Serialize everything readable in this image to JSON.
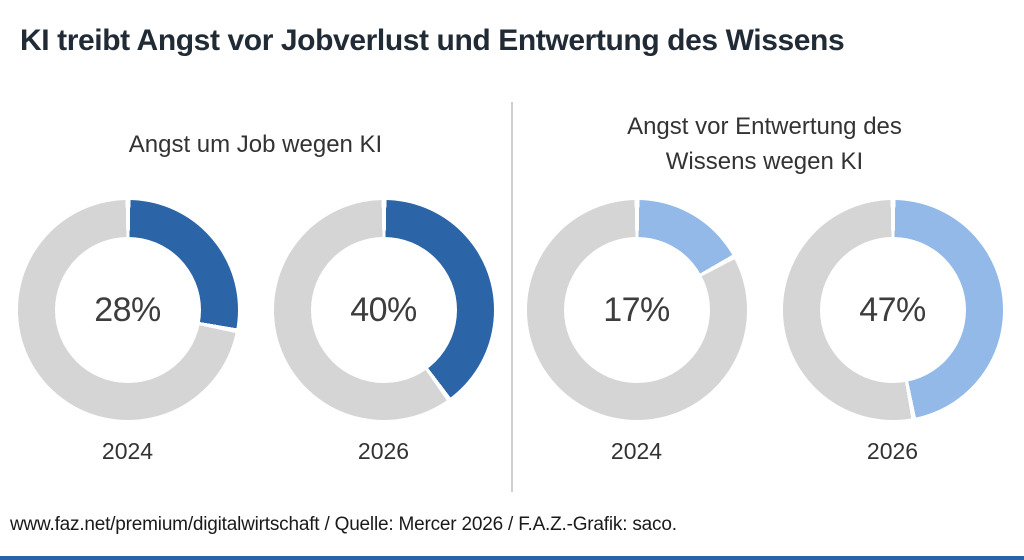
{
  "title": "KI treibt Angst vor Jobverlust und Entwertung des Wissens",
  "footer": "www.faz.net/premium/digitalwirtschaft / Quelle: Mercer 2026 / F.A.Z.-Grafik: saco.",
  "colors": {
    "title_text": "#212b36",
    "dark_blue": "#2b64a7",
    "light_blue": "#92b9e8",
    "ring_gray": "#d5d5d5",
    "divider_gray": "#cfcfcf",
    "bottom_bar_blue": "#2a63a6"
  },
  "chart_data": [
    {
      "type": "pie",
      "subtype": "donut",
      "title": "Angst um Job wegen KI",
      "title_lines": [
        "Angst um Job wegen KI"
      ],
      "unit": "%",
      "segment_color": "#2b64a7",
      "remainder_color": "#d5d5d5",
      "start_angle_deg": 0,
      "direction": "clockwise",
      "series": [
        {
          "category": "2024",
          "value": 28,
          "display": "28%"
        },
        {
          "category": "2026",
          "value": 40,
          "display": "40%"
        }
      ]
    },
    {
      "type": "pie",
      "subtype": "donut",
      "title": "Angst vor Entwertung des Wissens wegen KI",
      "title_lines": [
        "Angst vor Entwertung des",
        "Wissens wegen KI"
      ],
      "unit": "%",
      "segment_color": "#92b9e8",
      "remainder_color": "#d5d5d5",
      "start_angle_deg": 0,
      "direction": "clockwise",
      "series": [
        {
          "category": "2024",
          "value": 17,
          "display": "17%"
        },
        {
          "category": "2026",
          "value": 47,
          "display": "47%"
        }
      ]
    }
  ]
}
